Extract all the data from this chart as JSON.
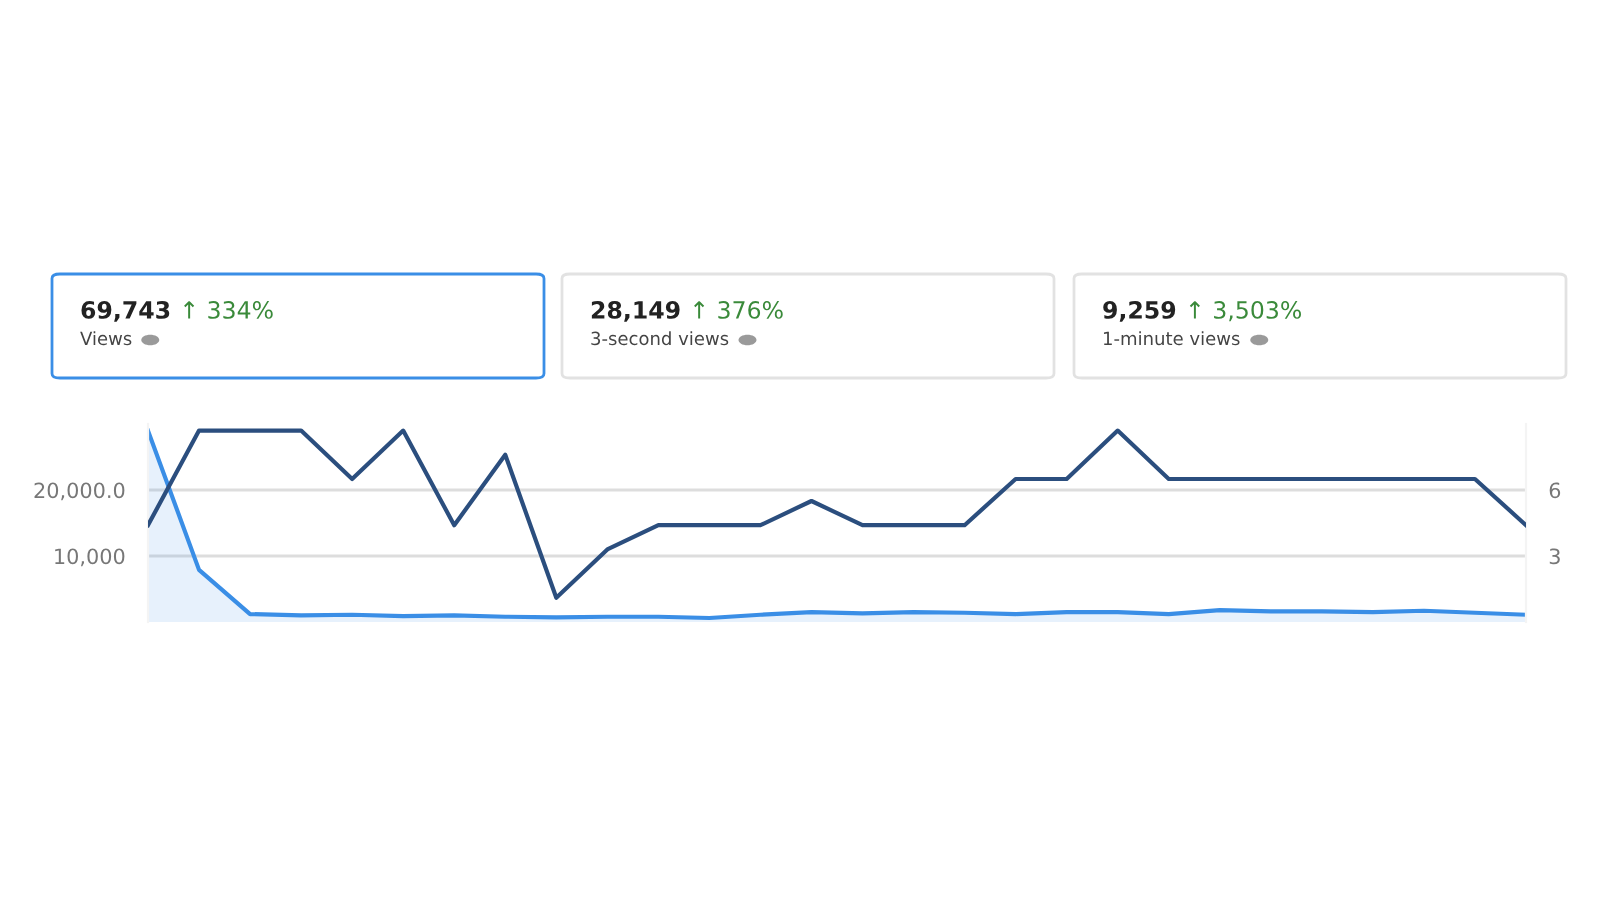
{
  "chart_data": {
    "type": "line",
    "categories": [
      null,
      null,
      null,
      null,
      null,
      null,
      null,
      null,
      null,
      null,
      null,
      null,
      null,
      null,
      null,
      null,
      null,
      null,
      null,
      null,
      null,
      null,
      null,
      null,
      null,
      null,
      null,
      null
    ],
    "series": [
      {
        "type": "area",
        "color": "#3a8ee6",
        "values": [
          29000,
          7900,
          1200,
          1000,
          1100,
          900,
          1000,
          800,
          700,
          800,
          800,
          600,
          1100,
          1500,
          1300,
          1500,
          1400,
          1200,
          1500,
          1500,
          1200,
          1800,
          1600,
          1600,
          1500,
          1700,
          1400,
          1100
        ]
      },
      {
        "axis": "y2",
        "color": "#2b4e7e",
        "values": [
          4.4,
          8.7,
          8.7,
          8.7,
          6.5,
          8.7,
          4.4,
          7.6,
          1.1,
          3.3,
          4.4,
          4.4,
          4.4,
          5.5,
          4.4,
          4.4,
          4.4,
          6.5,
          6.5,
          8.7,
          6.5,
          6.5,
          6.5,
          6.5,
          6.5,
          6.5,
          6.5,
          4.4
        ]
      }
    ],
    "ylim": [
      0,
      30000
    ],
    "yticks": [
      {
        "value": 10000,
        "label": "10,000"
      },
      {
        "value": 20000,
        "label": "20,000.0"
      }
    ],
    "y2lim": [
      0,
      9
    ],
    "y2ticks": [
      3,
      6
    ],
    "grid": "y",
    "legend": false,
    "marker": "none",
    "line_style": "solid",
    "annotations": [
      "69,743",
      "↑ 334%",
      "Views",
      "28,149",
      "↑ 376%",
      "3-second views",
      "9,259",
      "↑ 3,503%",
      "1-minute views"
    ]
  }
}
